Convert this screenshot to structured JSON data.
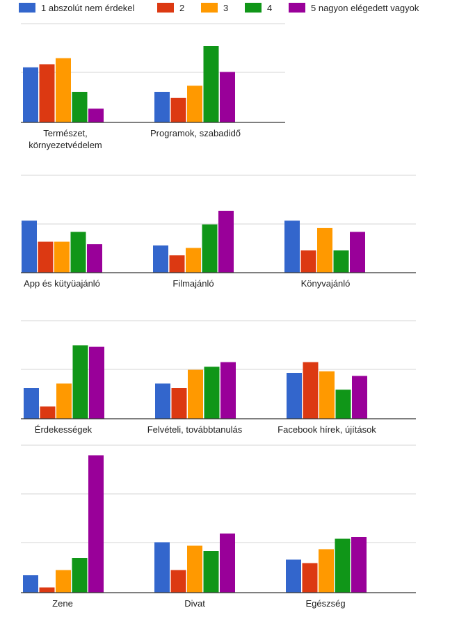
{
  "chart_data": {
    "type": "bar",
    "legend": {
      "placement": "top",
      "items": [
        {
          "name": "1 abszolút nem érdekel",
          "color": "#3366cc"
        },
        {
          "name": "2",
          "color": "#dc3912"
        },
        {
          "name": "3",
          "color": "#ff9900"
        },
        {
          "name": "4",
          "color": "#109618"
        },
        {
          "name": "5 nagyon elégedett vagyok",
          "color": "#990099"
        }
      ]
    },
    "panels": [
      {
        "categories": [
          {
            "label": [
              "Természet,",
              "környezetvédelem"
            ],
            "values": [
              36,
              38,
              42,
              20,
              9
            ]
          },
          {
            "label": [
              "Programok, szabadidő"
            ],
            "values": [
              20,
              16,
              24,
              50,
              33
            ]
          }
        ]
      },
      {
        "categories": [
          {
            "label": [
              "App és kütyüajánló"
            ],
            "values": [
              42,
              25,
              25,
              33,
              23
            ]
          },
          {
            "label": [
              "Filmajánló"
            ],
            "values": [
              22,
              14,
              20,
              39,
              50
            ]
          },
          {
            "label": [
              "Könyvajánló"
            ],
            "values": [
              42,
              18,
              36,
              18,
              33
            ]
          }
        ]
      },
      {
        "categories": [
          {
            "label": [
              "Érdekességek"
            ],
            "values": [
              20,
              8,
              23,
              48,
              47
            ]
          },
          {
            "label": [
              "Felvételi, továbbtanulás"
            ],
            "values": [
              23,
              20,
              32,
              34,
              37
            ]
          },
          {
            "label": [
              "Facebook hírek, újítások"
            ],
            "values": [
              30,
              37,
              31,
              19,
              28
            ]
          }
        ]
      },
      {
        "categories": [
          {
            "label": [
              "Zene"
            ],
            "values": [
              10,
              3,
              13,
              20,
              79
            ]
          },
          {
            "label": [
              "Divat"
            ],
            "values": [
              29,
              13,
              27,
              24,
              34
            ]
          },
          {
            "label": [
              "Egészség"
            ],
            "values": [
              19,
              17,
              25,
              31,
              32
            ]
          }
        ]
      }
    ]
  }
}
